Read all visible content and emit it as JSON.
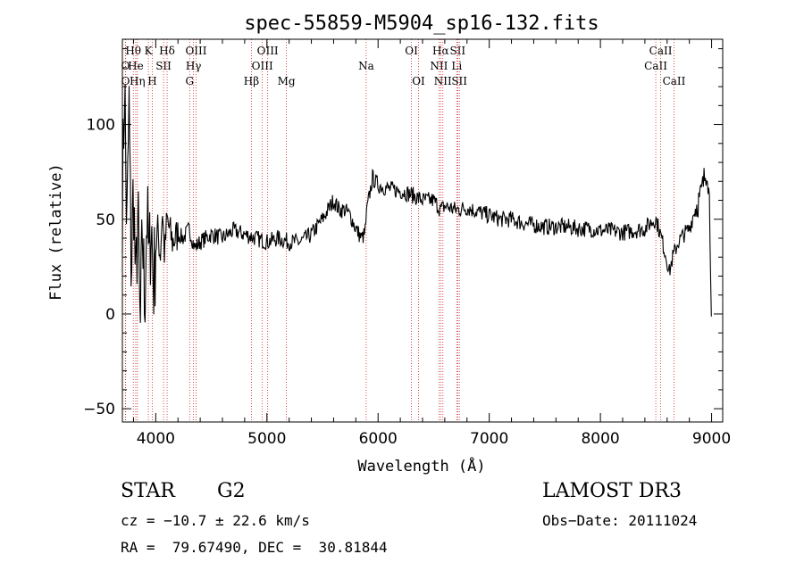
{
  "chart_data": {
    "type": "line",
    "title": "spec-55859-M5904_sp16-132.fits",
    "xlabel": "Wavelength (Å)",
    "ylabel": "Flux (relative)",
    "xlim": [
      3700,
      9100
    ],
    "ylim": [
      -57,
      145
    ],
    "xticks": [
      4000,
      5000,
      6000,
      7000,
      8000,
      9000
    ],
    "yticks": [
      -50,
      0,
      50,
      100
    ],
    "grid": false,
    "line_color": "#000000",
    "marker_color": "#cc2222",
    "series": [
      {
        "x": [
          3700,
          3720,
          3740,
          3760,
          3780,
          3800,
          3820,
          3840,
          3860,
          3880,
          3900,
          3920,
          3940,
          3960,
          3980,
          4000,
          4020,
          4040,
          4060,
          4080,
          4100,
          4150,
          4200,
          4250,
          4300,
          4350,
          4400,
          4500,
          4600,
          4700,
          4800,
          4900,
          5000,
          5100,
          5200,
          5300,
          5400,
          5500,
          5600,
          5650,
          5700,
          5750,
          5800,
          5850,
          5880,
          5900,
          5950,
          6000,
          6100,
          6200,
          6300,
          6400,
          6500,
          6563,
          6600,
          6700,
          6800,
          6900,
          7000,
          7100,
          7200,
          7300,
          7400,
          7500,
          7600,
          7700,
          7800,
          7900,
          8000,
          8100,
          8200,
          8300,
          8400,
          8450,
          8500,
          8550,
          8600,
          8620,
          8650,
          8700,
          8750,
          8800,
          8850,
          8900,
          8930,
          8960,
          8980,
          9000
        ],
        "y": [
          60,
          125,
          40,
          110,
          20,
          70,
          10,
          55,
          -15,
          45,
          5,
          55,
          25,
          50,
          15,
          35,
          45,
          30,
          55,
          30,
          50,
          38,
          42,
          40,
          45,
          35,
          38,
          42,
          40,
          44,
          42,
          40,
          38,
          40,
          38,
          38,
          42,
          50,
          60,
          55,
          55,
          52,
          45,
          40,
          42,
          55,
          72,
          68,
          66,
          65,
          63,
          60,
          60,
          55,
          57,
          55,
          56,
          54,
          52,
          50,
          50,
          48,
          47,
          46,
          46,
          46,
          45,
          45,
          44,
          44,
          43,
          44,
          45,
          48,
          50,
          40,
          28,
          22,
          30,
          38,
          42,
          45,
          55,
          62,
          70,
          78,
          60,
          0
        ]
      }
    ],
    "lines": [
      {
        "label": "O",
        "x": 3727,
        "row": 1
      },
      {
        "label": "O",
        "x": 3729,
        "row": 2
      },
      {
        "label": "Hθ",
        "x": 3798,
        "row": 0
      },
      {
        "label": "He",
        "x": 3820,
        "row": 1
      },
      {
        "label": "Hη",
        "x": 3835,
        "row": 2
      },
      {
        "label": "K",
        "x": 3934,
        "row": 0
      },
      {
        "label": "H",
        "x": 3969,
        "row": 2
      },
      {
        "label": "SII",
        "x": 4070,
        "row": 1
      },
      {
        "label": "Hδ",
        "x": 4102,
        "row": 0
      },
      {
        "label": "OIII",
        "x": 4363,
        "row": 0
      },
      {
        "label": "Hγ",
        "x": 4340,
        "row": 1
      },
      {
        "label": "G",
        "x": 4305,
        "row": 2
      },
      {
        "label": "Hβ",
        "x": 4861,
        "row": 2
      },
      {
        "label": "OIII",
        "x": 4959,
        "row": 1
      },
      {
        "label": "OIII",
        "x": 5007,
        "row": 0
      },
      {
        "label": "Mg",
        "x": 5175,
        "row": 2
      },
      {
        "label": "Na",
        "x": 5893,
        "row": 1
      },
      {
        "label": "OI",
        "x": 6300,
        "row": 0
      },
      {
        "label": "OI",
        "x": 6364,
        "row": 2
      },
      {
        "label": "NII",
        "x": 6548,
        "row": 1
      },
      {
        "label": "Hα",
        "x": 6563,
        "row": 0
      },
      {
        "label": "NII",
        "x": 6583,
        "row": 2
      },
      {
        "label": "Li",
        "x": 6708,
        "row": 1
      },
      {
        "label": "SII",
        "x": 6716,
        "row": 0
      },
      {
        "label": "SII",
        "x": 6731,
        "row": 2
      },
      {
        "label": "CaII",
        "x": 8498,
        "row": 1
      },
      {
        "label": "CaII",
        "x": 8542,
        "row": 0
      },
      {
        "label": "CaII",
        "x": 8662,
        "row": 2
      }
    ]
  },
  "info": {
    "object_class": "STAR",
    "subclass": "G2",
    "survey": "LAMOST DR3",
    "cz": "cz = −10.7 ± 22.6 km/s",
    "obs_date": "Obs−Date: 20111024",
    "coords": "RA =  79.67490, DEC =  30.81844"
  }
}
